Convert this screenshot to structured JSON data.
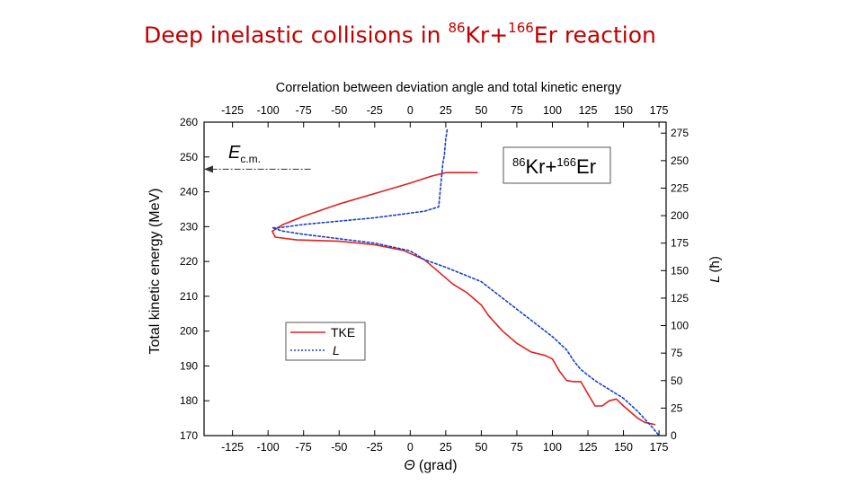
{
  "slide": {
    "title_prefix": "Deep inelastic collisions in ",
    "title_a_mass": "86",
    "title_a_symbol": "Kr+",
    "title_b_mass": "166",
    "title_b_symbol": "Er reaction"
  },
  "chart_data": {
    "type": "line",
    "title": "Correlation between deviation angle and total kinetic energy",
    "xlabel": "(grad)",
    "xlabel_symbol": "Θ",
    "ylabel": "Total kinetic energy (MeV)",
    "y2label": "(ħ)",
    "y2label_symbol": "L",
    "xlim": [
      -145,
      180
    ],
    "ylim": [
      170,
      260
    ],
    "y2lim": [
      0,
      285
    ],
    "x_ticks": [
      "-125",
      "-100",
      "-75",
      "-50",
      "-25",
      "0",
      "25",
      "50",
      "75",
      "100",
      "125",
      "150",
      "175"
    ],
    "y_ticks": [
      "170",
      "180",
      "190",
      "200",
      "210",
      "220",
      "230",
      "240",
      "250",
      "260"
    ],
    "y2_ticks": [
      "0",
      "25",
      "50",
      "75",
      "100",
      "125",
      "150",
      "175",
      "200",
      "225",
      "250",
      "275"
    ],
    "annotation": {
      "label_main": "E",
      "label_sub": "c.m.",
      "value": 246.5,
      "arrow_from_x": -70
    },
    "reaction_box": {
      "a_mass": "86",
      "a_symbol": "Kr+",
      "b_mass": "166",
      "b_symbol": "Er"
    },
    "legend_placement": "lower-left",
    "series": [
      {
        "name": "TKE",
        "axis": "left",
        "color": "#e02020",
        "dash": "solid",
        "points": [
          [
            47,
            245.5
          ],
          [
            25,
            245.5
          ],
          [
            15,
            244.5
          ],
          [
            0,
            242.5
          ],
          [
            -25,
            239.5
          ],
          [
            -50,
            236.5
          ],
          [
            -75,
            233
          ],
          [
            -90,
            230.5
          ],
          [
            -97,
            228.7
          ],
          [
            -95,
            227
          ],
          [
            -80,
            226.2
          ],
          [
            -50,
            225.8
          ],
          [
            -25,
            224.8
          ],
          [
            -5,
            223.2
          ],
          [
            10,
            220.5
          ],
          [
            20,
            217
          ],
          [
            30,
            213.5
          ],
          [
            40,
            211
          ],
          [
            50,
            207.5
          ],
          [
            55,
            204.5
          ],
          [
            65,
            200
          ],
          [
            75,
            196.5
          ],
          [
            85,
            194
          ],
          [
            95,
            193
          ],
          [
            100,
            192
          ],
          [
            105,
            188.5
          ],
          [
            110,
            185.8
          ],
          [
            115,
            185.5
          ],
          [
            120,
            185.5
          ],
          [
            125,
            182
          ],
          [
            130,
            178.5
          ],
          [
            135,
            178.5
          ],
          [
            140,
            180
          ],
          [
            145,
            180.5
          ],
          [
            150,
            178.5
          ],
          [
            160,
            175
          ],
          [
            165,
            173.8
          ],
          [
            172,
            173.2
          ]
        ]
      },
      {
        "name": "L",
        "axis": "right",
        "color": "#1a3fc8",
        "dash": "dotted",
        "points": [
          [
            26,
            278
          ],
          [
            25,
            270
          ],
          [
            24,
            255
          ],
          [
            23,
            248
          ],
          [
            20,
            208
          ],
          [
            10,
            204
          ],
          [
            -25,
            198
          ],
          [
            -50,
            195
          ],
          [
            -75,
            192
          ],
          [
            -92,
            189
          ],
          [
            -97,
            189
          ],
          [
            -90,
            186
          ],
          [
            -75,
            183
          ],
          [
            -50,
            179
          ],
          [
            -25,
            175
          ],
          [
            0,
            168
          ],
          [
            10,
            160
          ],
          [
            25,
            153
          ],
          [
            50,
            140
          ],
          [
            75,
            115
          ],
          [
            100,
            90
          ],
          [
            110,
            78
          ],
          [
            115,
            68
          ],
          [
            120,
            60
          ],
          [
            130,
            50
          ],
          [
            140,
            42
          ],
          [
            150,
            34
          ],
          [
            160,
            22
          ],
          [
            170,
            8
          ],
          [
            175,
            0
          ]
        ]
      }
    ]
  }
}
